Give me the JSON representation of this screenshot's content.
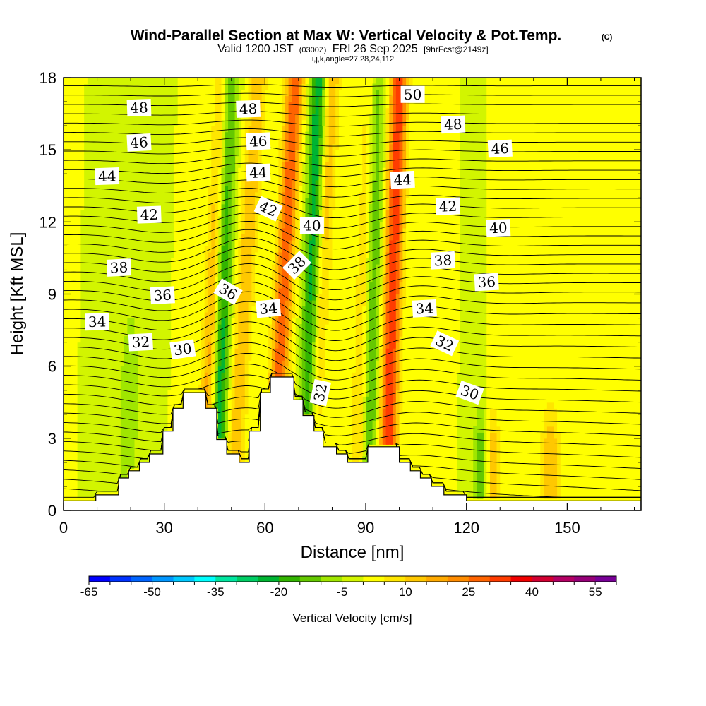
{
  "chart_data": {
    "type": "heatmap",
    "title": "Wind-Parallel Section at Max W: Vertical Velocity & Pot.Temp.",
    "title_mark": "(C)",
    "subtitle_valid": "Valid 1200 JST",
    "subtitle_utc": "(0300Z)",
    "subtitle_date": "FRI 26 Sep 2025",
    "subtitle_fcst": "[9hrFcst@2149z]",
    "subtitle_info": "i,j,k,angle=27,28,24,112",
    "xlabel": "Distance [nm]",
    "ylabel": "Height [Kft MSL]",
    "xlim": [
      0,
      172
    ],
    "ylim": [
      0,
      18
    ],
    "xticks": [
      0,
      30,
      60,
      90,
      120,
      150
    ],
    "yticks": [
      0,
      3,
      6,
      9,
      12,
      15,
      18
    ],
    "colorbar": {
      "label": "Vertical Velocity [cm/s]",
      "min": -65,
      "max": 60,
      "step": 5,
      "tick_values": [
        -65,
        -50,
        -35,
        -20,
        -5,
        10,
        25,
        40,
        55
      ],
      "colors": [
        "#0000ff",
        "#0032ff",
        "#0064ff",
        "#0096ff",
        "#00c8ff",
        "#00ffff",
        "#00e6a0",
        "#00cd64",
        "#00b432",
        "#32b400",
        "#64c800",
        "#a0e600",
        "#d2f500",
        "#ffff00",
        "#ffe600",
        "#ffc800",
        "#ffaa00",
        "#ff8c00",
        "#ff6400",
        "#ff3c00",
        "#f00000",
        "#d20032",
        "#b40064",
        "#960078",
        "#780096"
      ]
    },
    "updraft_bands": [
      {
        "x_base": 42,
        "x_top": 48,
        "w": 25
      },
      {
        "x_base": 50,
        "x_top": 58,
        "w": 15
      },
      {
        "x_base": 62,
        "x_top": 69,
        "w": 30
      },
      {
        "x_base": 73,
        "x_top": 80,
        "w": 15
      },
      {
        "x_base": 88,
        "x_top": 92,
        "w": 20
      },
      {
        "x_base": 96,
        "x_top": 100,
        "w": 35
      },
      {
        "x_base": 110,
        "x_top": 112,
        "w": 5
      },
      {
        "x_base": 127,
        "x_top": 127,
        "w": 20
      },
      {
        "x_base": 145,
        "x_top": 145,
        "w": 15
      }
    ],
    "downdraft_bands": [
      {
        "x_base": 45,
        "x_top": 49,
        "w": -30
      },
      {
        "x_base": 72,
        "x_top": 76,
        "w": -25
      },
      {
        "x_base": 90,
        "x_top": 93,
        "w": -25
      },
      {
        "x_base": 125,
        "x_top": 125,
        "w": -20
      },
      {
        "x_base": 19,
        "x_top": 21,
        "w": -10
      }
    ],
    "terrain": [
      {
        "x": 0,
        "h": 0.4
      },
      {
        "x": 9.6,
        "h": 0.4
      },
      {
        "x": 9.6,
        "h": 0.65
      },
      {
        "x": 16.4,
        "h": 0.65
      },
      {
        "x": 16.4,
        "h": 1.35
      },
      {
        "x": 19.4,
        "h": 1.35
      },
      {
        "x": 19.4,
        "h": 1.65
      },
      {
        "x": 22.6,
        "h": 1.65
      },
      {
        "x": 22.6,
        "h": 2.0
      },
      {
        "x": 25.6,
        "h": 2.0
      },
      {
        "x": 25.6,
        "h": 2.35
      },
      {
        "x": 29.6,
        "h": 2.35
      },
      {
        "x": 29.6,
        "h": 3.3
      },
      {
        "x": 32.6,
        "h": 3.3
      },
      {
        "x": 32.6,
        "h": 4.25
      },
      {
        "x": 35.6,
        "h": 4.25
      },
      {
        "x": 35.6,
        "h": 4.9
      },
      {
        "x": 42.3,
        "h": 4.9
      },
      {
        "x": 42.3,
        "h": 4.25
      },
      {
        "x": 45.6,
        "h": 4.25
      },
      {
        "x": 45.6,
        "h": 2.95
      },
      {
        "x": 48.6,
        "h": 2.95
      },
      {
        "x": 48.6,
        "h": 2.35
      },
      {
        "x": 52.3,
        "h": 2.35
      },
      {
        "x": 52.3,
        "h": 2.0
      },
      {
        "x": 55.3,
        "h": 2.0
      },
      {
        "x": 55.3,
        "h": 3.3
      },
      {
        "x": 58.6,
        "h": 3.3
      },
      {
        "x": 58.6,
        "h": 4.9
      },
      {
        "x": 61.6,
        "h": 4.9
      },
      {
        "x": 61.6,
        "h": 5.55
      },
      {
        "x": 68.6,
        "h": 5.55
      },
      {
        "x": 68.6,
        "h": 4.6
      },
      {
        "x": 71.3,
        "h": 4.6
      },
      {
        "x": 71.3,
        "h": 3.95
      },
      {
        "x": 74.6,
        "h": 3.95
      },
      {
        "x": 74.6,
        "h": 3.3
      },
      {
        "x": 77.3,
        "h": 3.3
      },
      {
        "x": 77.3,
        "h": 2.65
      },
      {
        "x": 81.3,
        "h": 2.65
      },
      {
        "x": 81.3,
        "h": 2.35
      },
      {
        "x": 84.6,
        "h": 2.35
      },
      {
        "x": 84.6,
        "h": 2.0
      },
      {
        "x": 90.6,
        "h": 2.0
      },
      {
        "x": 90.6,
        "h": 2.65
      },
      {
        "x": 100.0,
        "h": 2.65
      },
      {
        "x": 100.0,
        "h": 2.0
      },
      {
        "x": 103.3,
        "h": 2.0
      },
      {
        "x": 103.3,
        "h": 1.65
      },
      {
        "x": 106.3,
        "h": 1.65
      },
      {
        "x": 106.3,
        "h": 1.35
      },
      {
        "x": 109.6,
        "h": 1.35
      },
      {
        "x": 109.6,
        "h": 1.0
      },
      {
        "x": 113.3,
        "h": 1.0
      },
      {
        "x": 113.3,
        "h": 0.65
      },
      {
        "x": 120.0,
        "h": 0.65
      },
      {
        "x": 120.0,
        "h": 0.4
      },
      {
        "x": 172,
        "h": 0.4
      }
    ],
    "contour_labels": [
      {
        "text": "48",
        "x": 22.5,
        "y": 16.75,
        "angle": -2
      },
      {
        "text": "46",
        "x": 22.5,
        "y": 15.3,
        "angle": -3
      },
      {
        "text": "44",
        "x": 13.0,
        "y": 13.9,
        "angle": -2
      },
      {
        "text": "42",
        "x": 25.5,
        "y": 12.3,
        "angle": -2
      },
      {
        "text": "38",
        "x": 16.5,
        "y": 10.1,
        "angle": -3
      },
      {
        "text": "36",
        "x": 29.5,
        "y": 8.95,
        "angle": -3
      },
      {
        "text": "34",
        "x": 10.0,
        "y": 7.85,
        "angle": -2
      },
      {
        "text": "32",
        "x": 23.0,
        "y": 7.0,
        "angle": -3
      },
      {
        "text": "30",
        "x": 35.5,
        "y": 6.7,
        "angle": -8
      },
      {
        "text": "48",
        "x": 55.0,
        "y": 16.7,
        "angle": -2
      },
      {
        "text": "46",
        "x": 58.0,
        "y": 15.35,
        "angle": -3
      },
      {
        "text": "44",
        "x": 58.0,
        "y": 14.05,
        "angle": -3
      },
      {
        "text": "42",
        "x": 61.0,
        "y": 12.55,
        "angle": 25
      },
      {
        "text": "36",
        "x": 49.0,
        "y": 9.1,
        "angle": 30
      },
      {
        "text": "34",
        "x": 61.0,
        "y": 8.4,
        "angle": -5
      },
      {
        "text": "40",
        "x": 74.0,
        "y": 11.85,
        "angle": 0
      },
      {
        "text": "38",
        "x": 69.5,
        "y": 10.2,
        "angle": -45
      },
      {
        "text": "32",
        "x": 76.5,
        "y": 4.9,
        "angle": -78
      },
      {
        "text": "50",
        "x": 104.0,
        "y": 17.3,
        "angle": 0
      },
      {
        "text": "48",
        "x": 116.0,
        "y": 16.05,
        "angle": -3
      },
      {
        "text": "46",
        "x": 130.0,
        "y": 15.05,
        "angle": -3
      },
      {
        "text": "44",
        "x": 101.0,
        "y": 13.75,
        "angle": -3
      },
      {
        "text": "42",
        "x": 114.5,
        "y": 12.65,
        "angle": -3
      },
      {
        "text": "40",
        "x": 129.5,
        "y": 11.75,
        "angle": -2
      },
      {
        "text": "38",
        "x": 113.0,
        "y": 10.4,
        "angle": -3
      },
      {
        "text": "36",
        "x": 126.0,
        "y": 9.5,
        "angle": -3
      },
      {
        "text": "34",
        "x": 107.5,
        "y": 8.4,
        "angle": -3
      },
      {
        "text": "32",
        "x": 113.5,
        "y": 6.95,
        "angle": 25
      },
      {
        "text": "30",
        "x": 121.0,
        "y": 4.9,
        "angle": 20
      }
    ]
  }
}
